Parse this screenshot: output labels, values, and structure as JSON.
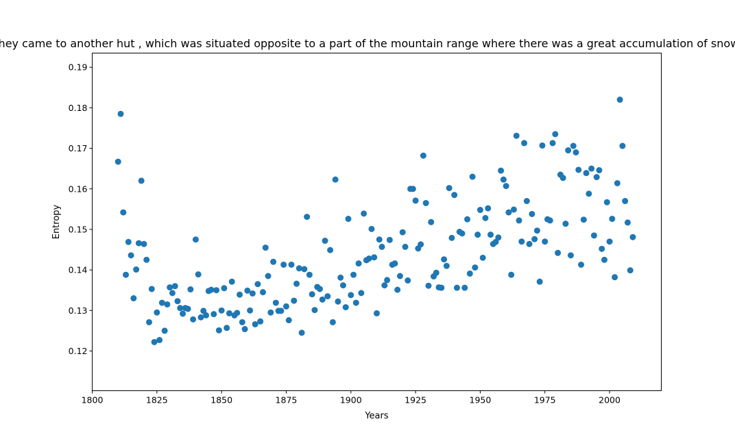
{
  "chart_data": {
    "type": "scatter",
    "title": "They came to another hut , which was situated opposite to a part of the mountain range where there was a great accumulation of snow",
    "xlabel": "Years",
    "ylabel": "Entropy",
    "xlim": [
      1800,
      2020
    ],
    "ylim": [
      0.1102,
      0.1935
    ],
    "xticks": [
      1800,
      1825,
      1850,
      1875,
      1900,
      1925,
      1950,
      1975,
      2000
    ],
    "xtick_labels": [
      "1800",
      "1825",
      "1850",
      "1875",
      "1900",
      "1925",
      "1950",
      "1975",
      "2000"
    ],
    "yticks": [
      0.12,
      0.13,
      0.14,
      0.15,
      0.16,
      0.17,
      0.18,
      0.19
    ],
    "ytick_labels": [
      "0.12",
      "0.13",
      "0.14",
      "0.15",
      "0.16",
      "0.17",
      "0.18",
      "0.19"
    ],
    "grid": false,
    "marker_color": "#1f77b4",
    "points": [
      [
        1810,
        0.1667
      ],
      [
        1811,
        0.1785
      ],
      [
        1812,
        0.1542
      ],
      [
        1813,
        0.1388
      ],
      [
        1814,
        0.1469
      ],
      [
        1815,
        0.1436
      ],
      [
        1816,
        0.133
      ],
      [
        1817,
        0.1401
      ],
      [
        1818,
        0.1466
      ],
      [
        1819,
        0.162
      ],
      [
        1820,
        0.1464
      ],
      [
        1821,
        0.1425
      ],
      [
        1822,
        0.1271
      ],
      [
        1823,
        0.1353
      ],
      [
        1824,
        0.1222
      ],
      [
        1825,
        0.1295
      ],
      [
        1826,
        0.1227
      ],
      [
        1827,
        0.1319
      ],
      [
        1828,
        0.125
      ],
      [
        1829,
        0.1315
      ],
      [
        1830,
        0.1357
      ],
      [
        1831,
        0.1343
      ],
      [
        1832,
        0.136
      ],
      [
        1833,
        0.1323
      ],
      [
        1834,
        0.1306
      ],
      [
        1835,
        0.1292
      ],
      [
        1836,
        0.1306
      ],
      [
        1837,
        0.1304
      ],
      [
        1838,
        0.1352
      ],
      [
        1839,
        0.1278
      ],
      [
        1840,
        0.1475
      ],
      [
        1841,
        0.1389
      ],
      [
        1842,
        0.1283
      ],
      [
        1843,
        0.1299
      ],
      [
        1844,
        0.1288
      ],
      [
        1845,
        0.1348
      ],
      [
        1846,
        0.1351
      ],
      [
        1847,
        0.1291
      ],
      [
        1848,
        0.135
      ],
      [
        1849,
        0.1251
      ],
      [
        1850,
        0.13
      ],
      [
        1851,
        0.1355
      ],
      [
        1852,
        0.1257
      ],
      [
        1853,
        0.1293
      ],
      [
        1854,
        0.1371
      ],
      [
        1855,
        0.1288
      ],
      [
        1856,
        0.1294
      ],
      [
        1857,
        0.1339
      ],
      [
        1858,
        0.1271
      ],
      [
        1859,
        0.1254
      ],
      [
        1860,
        0.1349
      ],
      [
        1861,
        0.13
      ],
      [
        1862,
        0.1342
      ],
      [
        1863,
        0.1266
      ],
      [
        1864,
        0.1365
      ],
      [
        1865,
        0.1273
      ],
      [
        1866,
        0.1345
      ],
      [
        1867,
        0.1455
      ],
      [
        1868,
        0.1385
      ],
      [
        1869,
        0.1295
      ],
      [
        1870,
        0.142
      ],
      [
        1871,
        0.1319
      ],
      [
        1872,
        0.1299
      ],
      [
        1873,
        0.1299
      ],
      [
        1874,
        0.1413
      ],
      [
        1875,
        0.131
      ],
      [
        1876,
        0.1276
      ],
      [
        1877,
        0.1413
      ],
      [
        1878,
        0.1324
      ],
      [
        1879,
        0.1366
      ],
      [
        1880,
        0.1404
      ],
      [
        1881,
        0.1245
      ],
      [
        1882,
        0.1402
      ],
      [
        1883,
        0.1531
      ],
      [
        1884,
        0.1388
      ],
      [
        1885,
        0.134
      ],
      [
        1886,
        0.1301
      ],
      [
        1887,
        0.1358
      ],
      [
        1888,
        0.1353
      ],
      [
        1889,
        0.1327
      ],
      [
        1890,
        0.1472
      ],
      [
        1891,
        0.1335
      ],
      [
        1892,
        0.1449
      ],
      [
        1893,
        0.1271
      ],
      [
        1894,
        0.1623
      ],
      [
        1895,
        0.1322
      ],
      [
        1896,
        0.1381
      ],
      [
        1897,
        0.1362
      ],
      [
        1898,
        0.1308
      ],
      [
        1899,
        0.1526
      ],
      [
        1900,
        0.1338
      ],
      [
        1901,
        0.1388
      ],
      [
        1902,
        0.1319
      ],
      [
        1903,
        0.1416
      ],
      [
        1904,
        0.1343
      ],
      [
        1905,
        0.1539
      ],
      [
        1906,
        0.1424
      ],
      [
        1907,
        0.1428
      ],
      [
        1908,
        0.1501
      ],
      [
        1909,
        0.1431
      ],
      [
        1910,
        0.1293
      ],
      [
        1911,
        0.1475
      ],
      [
        1912,
        0.1457
      ],
      [
        1913,
        0.1362
      ],
      [
        1914,
        0.1375
      ],
      [
        1915,
        0.1474
      ],
      [
        1916,
        0.1413
      ],
      [
        1917,
        0.1416
      ],
      [
        1918,
        0.1351
      ],
      [
        1919,
        0.1385
      ],
      [
        1920,
        0.1493
      ],
      [
        1921,
        0.1457
      ],
      [
        1922,
        0.1374
      ],
      [
        1923,
        0.16
      ],
      [
        1924,
        0.16
      ],
      [
        1925,
        0.1571
      ],
      [
        1926,
        0.1453
      ],
      [
        1927,
        0.1463
      ],
      [
        1928,
        0.1682
      ],
      [
        1929,
        0.1565
      ],
      [
        1930,
        0.1361
      ],
      [
        1931,
        0.1518
      ],
      [
        1932,
        0.1384
      ],
      [
        1933,
        0.1393
      ],
      [
        1934,
        0.1357
      ],
      [
        1935,
        0.1356
      ],
      [
        1936,
        0.1426
      ],
      [
        1937,
        0.141
      ],
      [
        1938,
        0.1602
      ],
      [
        1939,
        0.1479
      ],
      [
        1940,
        0.1585
      ],
      [
        1941,
        0.1356
      ],
      [
        1942,
        0.1494
      ],
      [
        1943,
        0.149
      ],
      [
        1944,
        0.1356
      ],
      [
        1945,
        0.1525
      ],
      [
        1946,
        0.1391
      ],
      [
        1947,
        0.163
      ],
      [
        1948,
        0.1406
      ],
      [
        1949,
        0.1487
      ],
      [
        1950,
        0.1548
      ],
      [
        1951,
        0.143
      ],
      [
        1952,
        0.1528
      ],
      [
        1953,
        0.1552
      ],
      [
        1954,
        0.1487
      ],
      [
        1955,
        0.1464
      ],
      [
        1956,
        0.1469
      ],
      [
        1957,
        0.148
      ],
      [
        1958,
        0.1645
      ],
      [
        1959,
        0.1623
      ],
      [
        1960,
        0.1607
      ],
      [
        1961,
        0.1542
      ],
      [
        1962,
        0.1388
      ],
      [
        1963,
        0.1549
      ],
      [
        1964,
        0.1731
      ],
      [
        1965,
        0.1522
      ],
      [
        1966,
        0.147
      ],
      [
        1967,
        0.1713
      ],
      [
        1968,
        0.157
      ],
      [
        1969,
        0.1464
      ],
      [
        1970,
        0.1538
      ],
      [
        1971,
        0.1476
      ],
      [
        1972,
        0.1497
      ],
      [
        1973,
        0.1371
      ],
      [
        1974,
        0.1707
      ],
      [
        1975,
        0.147
      ],
      [
        1976,
        0.1525
      ],
      [
        1977,
        0.1522
      ],
      [
        1978,
        0.1713
      ],
      [
        1979,
        0.1735
      ],
      [
        1980,
        0.1442
      ],
      [
        1981,
        0.1635
      ],
      [
        1982,
        0.1627
      ],
      [
        1983,
        0.1514
      ],
      [
        1984,
        0.1695
      ],
      [
        1985,
        0.1436
      ],
      [
        1986,
        0.1706
      ],
      [
        1987,
        0.169
      ],
      [
        1988,
        0.1647
      ],
      [
        1989,
        0.1413
      ],
      [
        1990,
        0.1524
      ],
      [
        1991,
        0.1639
      ],
      [
        1992,
        0.1588
      ],
      [
        1993,
        0.165
      ],
      [
        1994,
        0.1485
      ],
      [
        1995,
        0.1629
      ],
      [
        1996,
        0.1646
      ],
      [
        1997,
        0.1452
      ],
      [
        1998,
        0.1425
      ],
      [
        1999,
        0.1567
      ],
      [
        2000,
        0.147
      ],
      [
        2001,
        0.1526
      ],
      [
        2002,
        0.1382
      ],
      [
        2003,
        0.1614
      ],
      [
        2004,
        0.182
      ],
      [
        2005,
        0.1706
      ],
      [
        2006,
        0.157
      ],
      [
        2007,
        0.1517
      ],
      [
        2008,
        0.1399
      ],
      [
        2009,
        0.1481
      ]
    ]
  }
}
